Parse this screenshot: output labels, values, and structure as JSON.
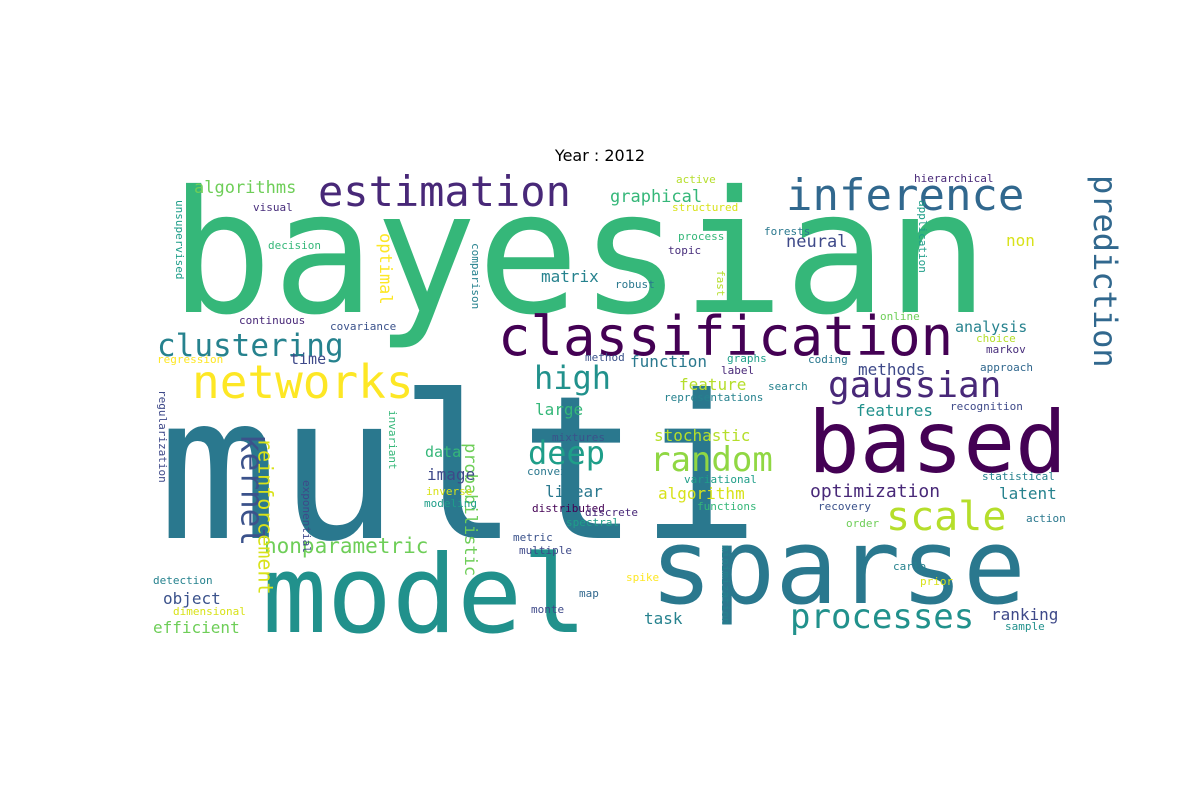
{
  "title": "Year : 2012",
  "colors": {
    "dark_purple": "#440154",
    "purple": "#482878",
    "indigo": "#3e4989",
    "blue": "#31688e",
    "teal_blue": "#26828e",
    "teal": "#1f9e89",
    "green": "#35b779",
    "light_green": "#6ece58",
    "lime": "#b5de2b",
    "yellow": "#fde725"
  },
  "words": [
    {
      "text": "bayesian",
      "color": "#35b779"
    },
    {
      "text": "multi",
      "color": "#2a788e"
    },
    {
      "text": "model",
      "color": "#21918c"
    },
    {
      "text": "sparse",
      "color": "#2a788e"
    },
    {
      "text": "based",
      "color": "#440154"
    },
    {
      "text": "classification",
      "color": "#440154"
    },
    {
      "text": "estimation",
      "color": "#482878"
    },
    {
      "text": "inference",
      "color": "#31688e"
    },
    {
      "text": "networks",
      "color": "#fde725"
    },
    {
      "text": "clustering",
      "color": "#26828e"
    },
    {
      "text": "gaussian",
      "color": "#482878"
    },
    {
      "text": "processes",
      "color": "#21918c"
    },
    {
      "text": "scale",
      "color": "#b5de2b"
    },
    {
      "text": "random",
      "color": "#90d743"
    },
    {
      "text": "deep",
      "color": "#1f9e89"
    },
    {
      "text": "high",
      "color": "#21918c"
    },
    {
      "text": "prediction",
      "color": "#31688e"
    },
    {
      "text": "kernel",
      "color": "#3b528b"
    },
    {
      "text": "nonparametric",
      "color": "#6ece58"
    },
    {
      "text": "reinforcement",
      "color": "#d8e219"
    },
    {
      "text": "optimization",
      "color": "#482878"
    },
    {
      "text": "algorithms",
      "color": "#6ece58"
    },
    {
      "text": "graphical",
      "color": "#35b779"
    },
    {
      "text": "neural",
      "color": "#3e4989"
    },
    {
      "text": "non",
      "color": "#d8e219"
    },
    {
      "text": "optimal",
      "color": "#fde725"
    },
    {
      "text": "probabilistic",
      "color": "#6ece58"
    },
    {
      "text": "matrix",
      "color": "#26828e"
    },
    {
      "text": "analysis",
      "color": "#26828e"
    },
    {
      "text": "time",
      "color": "#3e4989"
    },
    {
      "text": "function",
      "color": "#2a788e"
    },
    {
      "text": "methods",
      "color": "#3e4989"
    },
    {
      "text": "feature",
      "color": "#b5de2b"
    },
    {
      "text": "features",
      "color": "#21918c"
    },
    {
      "text": "large",
      "color": "#35b779"
    },
    {
      "text": "stochastic",
      "color": "#b5de2b"
    },
    {
      "text": "data",
      "color": "#35b779"
    },
    {
      "text": "image",
      "color": "#3e4989"
    },
    {
      "text": "linear",
      "color": "#2a788e"
    },
    {
      "text": "algorithm",
      "color": "#d8e219"
    },
    {
      "text": "latent",
      "color": "#26828e"
    },
    {
      "text": "object",
      "color": "#3b528b"
    },
    {
      "text": "efficient",
      "color": "#6ece58"
    },
    {
      "text": "task",
      "color": "#26828e"
    },
    {
      "text": "ranking",
      "color": "#3e4989"
    },
    {
      "text": "visual",
      "color": "#472d7b"
    },
    {
      "text": "decision",
      "color": "#35b779"
    },
    {
      "text": "unsupervised",
      "color": "#1f9e89"
    },
    {
      "text": "active",
      "color": "#b5de2b"
    },
    {
      "text": "structured",
      "color": "#d8e219"
    },
    {
      "text": "hierarchical",
      "color": "#482878"
    },
    {
      "text": "process",
      "color": "#35b779"
    },
    {
      "text": "topic",
      "color": "#472d7b"
    },
    {
      "text": "forests",
      "color": "#2a788e"
    },
    {
      "text": "application",
      "color": "#1f9e89"
    },
    {
      "text": "comparison",
      "color": "#26828e"
    },
    {
      "text": "robust",
      "color": "#2a788e"
    },
    {
      "text": "fast",
      "color": "#b5de2b"
    },
    {
      "text": "continuous",
      "color": "#482878"
    },
    {
      "text": "covariance",
      "color": "#3b528b"
    },
    {
      "text": "online",
      "color": "#6ece58"
    },
    {
      "text": "choice",
      "color": "#b5de2b"
    },
    {
      "text": "markov",
      "color": "#472d7b"
    },
    {
      "text": "regression",
      "color": "#fde725"
    },
    {
      "text": "method",
      "color": "#3b528b"
    },
    {
      "text": "graphs",
      "color": "#1f9e89"
    },
    {
      "text": "coding",
      "color": "#2a788e"
    },
    {
      "text": "label",
      "color": "#482878"
    },
    {
      "text": "search",
      "color": "#26828e"
    },
    {
      "text": "approach",
      "color": "#31688e"
    },
    {
      "text": "representations",
      "color": "#26828e"
    },
    {
      "text": "recognition",
      "color": "#3e4989"
    },
    {
      "text": "regularization",
      "color": "#3e4989"
    },
    {
      "text": "invariant",
      "color": "#35b779"
    },
    {
      "text": "mixtures",
      "color": "#3b528b"
    },
    {
      "text": "convex",
      "color": "#2a788e"
    },
    {
      "text": "variational",
      "color": "#1f9e89"
    },
    {
      "text": "statistical",
      "color": "#26828e"
    },
    {
      "text": "exponential",
      "color": "#3e4989"
    },
    {
      "text": "inverse",
      "color": "#d8e219"
    },
    {
      "text": "modeling",
      "color": "#1f9e89"
    },
    {
      "text": "functions",
      "color": "#35b779"
    },
    {
      "text": "recovery",
      "color": "#3b528b"
    },
    {
      "text": "distributed",
      "color": "#440154"
    },
    {
      "text": "spectral",
      "color": "#1f9e89"
    },
    {
      "text": "order",
      "color": "#6ece58"
    },
    {
      "text": "action",
      "color": "#2a788e"
    },
    {
      "text": "metric",
      "color": "#3b528b"
    },
    {
      "text": "multiple",
      "color": "#3e4989"
    },
    {
      "text": "carlo",
      "color": "#26828e"
    },
    {
      "text": "detection",
      "color": "#26828e"
    },
    {
      "text": "spike",
      "color": "#fde725"
    },
    {
      "text": "prior",
      "color": "#d8e219"
    },
    {
      "text": "dimensional",
      "color": "#d8e219"
    },
    {
      "text": "monte",
      "color": "#3e4989"
    },
    {
      "text": "map",
      "color": "#31688e"
    },
    {
      "text": "minimization",
      "color": "#26828e"
    },
    {
      "text": "sample",
      "color": "#21918c"
    },
    {
      "text": "discrete",
      "color": "#482878"
    }
  ]
}
